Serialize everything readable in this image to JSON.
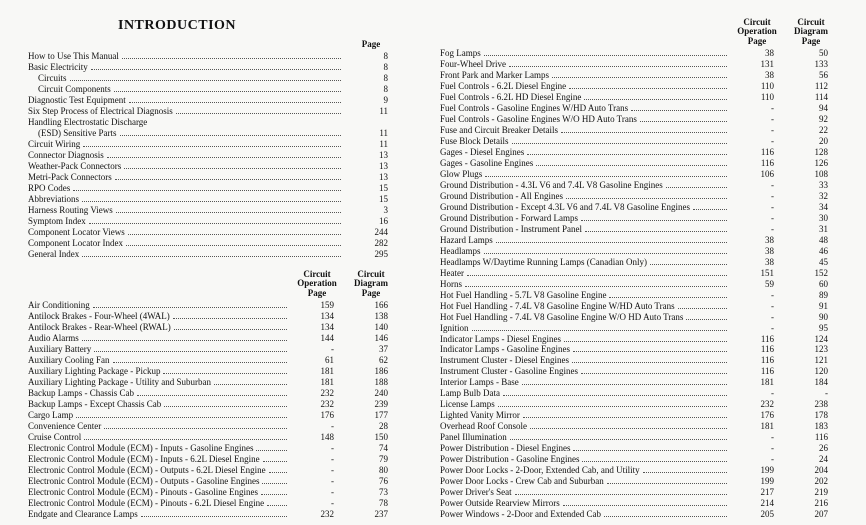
{
  "title": "INTRODUCTION",
  "headers": {
    "page": "Page",
    "circuit_op": "Circuit\nOperation\nPage",
    "circuit_diag": "Circuit\nDiagram\nPage"
  },
  "intro": [
    {
      "label": "How to Use This Manual",
      "page": "8",
      "indent": 0
    },
    {
      "label": "Basic Electricity",
      "page": "8",
      "indent": 0
    },
    {
      "label": "Circuits",
      "page": "8",
      "indent": 1
    },
    {
      "label": "Circuit Components",
      "page": "8",
      "indent": 1
    },
    {
      "label": "Diagnostic Test Equipment",
      "page": "9",
      "indent": 0
    },
    {
      "label": "Six Step Process of Electrical Diagnosis",
      "page": "11",
      "indent": 0
    },
    {
      "label": "Handling Electrostatic Discharge",
      "page": "",
      "indent": 0,
      "cont": true
    },
    {
      "label": "(ESD) Sensitive Parts",
      "page": "11",
      "indent": 1
    },
    {
      "label": "Circuit Wiring",
      "page": "11",
      "indent": 0
    },
    {
      "label": "Connector Diagnosis",
      "page": "13",
      "indent": 0
    },
    {
      "label": "Weather-Pack Connectors",
      "page": "13",
      "indent": 0
    },
    {
      "label": "Metri-Pack Connectors",
      "page": "13",
      "indent": 0
    },
    {
      "label": "RPO Codes",
      "page": "15",
      "indent": 0
    },
    {
      "label": "Abbreviations",
      "page": "15",
      "indent": 0
    },
    {
      "label": "Harness Routing Views",
      "page": "3",
      "indent": 0
    },
    {
      "label": "Symptom Index",
      "page": "16",
      "indent": 0
    },
    {
      "label": "Component Locator Views",
      "page": "244",
      "indent": 0
    },
    {
      "label": "Component Locator Index",
      "page": "282",
      "indent": 0
    },
    {
      "label": "General Index",
      "page": "295",
      "indent": 0
    }
  ],
  "left2": [
    {
      "label": "Air Conditioning",
      "op": "159",
      "diag": "166"
    },
    {
      "label": "Antilock Brakes - Four-Wheel (4WAL)",
      "op": "134",
      "diag": "138"
    },
    {
      "label": "Antilock Brakes - Rear-Wheel (RWAL)",
      "op": "134",
      "diag": "140"
    },
    {
      "label": "Audio Alarms",
      "op": "144",
      "diag": "146"
    },
    {
      "label": "Auxiliary Battery",
      "op": "-",
      "diag": "37"
    },
    {
      "label": "Auxiliary Cooling Fan",
      "op": "61",
      "diag": "62"
    },
    {
      "label": "Auxiliary Lighting Package - Pickup",
      "op": "181",
      "diag": "186"
    },
    {
      "label": "Auxiliary Lighting Package - Utility and Suburban",
      "op": "181",
      "diag": "188"
    },
    {
      "label": "Backup Lamps - Chassis Cab",
      "op": "232",
      "diag": "240"
    },
    {
      "label": "Backup Lamps - Except Chassis Cab",
      "op": "232",
      "diag": "239"
    },
    {
      "label": "Cargo Lamp",
      "op": "176",
      "diag": "177"
    },
    {
      "label": "Convenience Center",
      "op": "-",
      "diag": "28"
    },
    {
      "label": "Cruise Control",
      "op": "148",
      "diag": "150"
    },
    {
      "label": "Electronic Control Module (ECM) - Inputs - Gasoline Engines",
      "op": "-",
      "diag": "74"
    },
    {
      "label": "Electronic Control Module (ECM) - Inputs - 6.2L Diesel Engine",
      "op": "-",
      "diag": "79"
    },
    {
      "label": "Electronic Control Module (ECM) - Outputs - 6.2L Diesel Engine",
      "op": "-",
      "diag": "80"
    },
    {
      "label": "Electronic Control Module (ECM) - Outputs - Gasoline Engines",
      "op": "-",
      "diag": "76"
    },
    {
      "label": "Electronic Control Module (ECM) - Pinouts - Gasoline Engines",
      "op": "-",
      "diag": "73"
    },
    {
      "label": "Electronic Control Module (ECM) - Pinouts - 6.2L Diesel Engine",
      "op": "-",
      "diag": "78"
    },
    {
      "label": "Endgate and Clearance Lamps",
      "op": "232",
      "diag": "237"
    }
  ],
  "right": [
    {
      "label": "Fog Lamps",
      "op": "38",
      "diag": "50"
    },
    {
      "label": "Four-Wheel Drive",
      "op": "131",
      "diag": "133"
    },
    {
      "label": "Front Park and Marker Lamps",
      "op": "38",
      "diag": "56"
    },
    {
      "label": "Fuel Controls - 6.2L Diesel Engine",
      "op": "110",
      "diag": "112"
    },
    {
      "label": "Fuel Controls - 6.2L HD Diesel Engine",
      "op": "110",
      "diag": "114"
    },
    {
      "label": "Fuel Controls - Gasoline Engines W/HD Auto Trans",
      "op": "-",
      "diag": "94"
    },
    {
      "label": "Fuel Controls - Gasoline Engines W/O HD Auto Trans",
      "op": "-",
      "diag": "92"
    },
    {
      "label": "Fuse and Circuit Breaker Details",
      "op": "-",
      "diag": "22"
    },
    {
      "label": "Fuse Block Details",
      "op": "-",
      "diag": "20"
    },
    {
      "label": "Gages - Diesel Engines",
      "op": "116",
      "diag": "128"
    },
    {
      "label": "Gages - Gasoline Engines",
      "op": "116",
      "diag": "126"
    },
    {
      "label": "Glow Plugs",
      "op": "106",
      "diag": "108"
    },
    {
      "label": "Ground Distribution - 4.3L V6 and 7.4L V8 Gasoline Engines",
      "op": "-",
      "diag": "33"
    },
    {
      "label": "Ground Distribution - All Engines",
      "op": "-",
      "diag": "32"
    },
    {
      "label": "Ground Distribution - Except 4.3L V6 and 7.4L V8 Gasoline Engines",
      "op": "-",
      "diag": "34"
    },
    {
      "label": "Ground Distribution - Forward Lamps",
      "op": "-",
      "diag": "30"
    },
    {
      "label": "Ground Distribution - Instrument Panel",
      "op": "-",
      "diag": "31"
    },
    {
      "label": "Hazard Lamps",
      "op": "38",
      "diag": "48"
    },
    {
      "label": "Headlamps",
      "op": "38",
      "diag": "46"
    },
    {
      "label": "Headlamps W/Daytime Running Lamps (Canadian Only)",
      "op": "38",
      "diag": "45"
    },
    {
      "label": "Heater",
      "op": "151",
      "diag": "152"
    },
    {
      "label": "Horns",
      "op": "59",
      "diag": "60"
    },
    {
      "label": "Hot Fuel Handling - 5.7L V8 Gasoline Engine",
      "op": "-",
      "diag": "89"
    },
    {
      "label": "Hot Fuel Handling - 7.4L V8 Gasoline Engine W/HD Auto Trans",
      "op": "-",
      "diag": "91"
    },
    {
      "label": "Hot Fuel Handling - 7.4L V8 Gasoline Engine W/O HD Auto Trans",
      "op": "-",
      "diag": "90"
    },
    {
      "label": "Ignition",
      "op": "-",
      "diag": "95"
    },
    {
      "label": "Indicator Lamps - Diesel Engines",
      "op": "116",
      "diag": "124"
    },
    {
      "label": "Indicator Lamps - Gasoline Engines",
      "op": "116",
      "diag": "123"
    },
    {
      "label": "Instrument Cluster - Diesel Engines",
      "op": "116",
      "diag": "121"
    },
    {
      "label": "Instrument Cluster - Gasoline Engines",
      "op": "116",
      "diag": "120"
    },
    {
      "label": "Interior Lamps - Base",
      "op": "181",
      "diag": "184"
    },
    {
      "label": "Lamp Bulb Data",
      "op": "-",
      "diag": "-"
    },
    {
      "label": "License Lamps",
      "op": "232",
      "diag": "238"
    },
    {
      "label": "Lighted Vanity Mirror",
      "op": "176",
      "diag": "178"
    },
    {
      "label": "Overhead Roof Console",
      "op": "181",
      "diag": "183"
    },
    {
      "label": "Panel Illumination",
      "op": "-",
      "diag": "116"
    },
    {
      "label": "Power Distribution - Diesel Engines",
      "op": "-",
      "diag": "26"
    },
    {
      "label": "Power Distribution - Gasoline Engines",
      "op": "-",
      "diag": "24"
    },
    {
      "label": "Power Door Locks - 2-Door, Extended Cab, and Utility",
      "op": "199",
      "diag": "204"
    },
    {
      "label": "Power Door Locks - Crew Cab and Suburban",
      "op": "199",
      "diag": "202"
    },
    {
      "label": "Power Driver's Seat",
      "op": "217",
      "diag": "219"
    },
    {
      "label": "Power Outside Rearview Mirrors",
      "op": "214",
      "diag": "216"
    },
    {
      "label": "Power Windows - 2-Door and Extended Cab",
      "op": "205",
      "diag": "207"
    }
  ]
}
